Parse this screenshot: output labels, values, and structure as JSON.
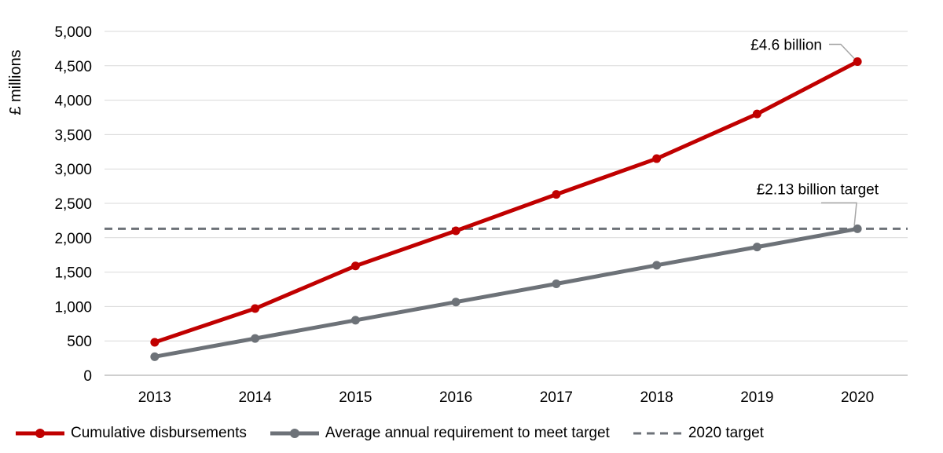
{
  "chart_data": {
    "type": "line",
    "ylabel": "£ millions",
    "xlabel": "",
    "ylim": [
      0,
      5000
    ],
    "yticks": [
      0,
      500,
      1000,
      1500,
      2000,
      2500,
      3000,
      3500,
      4000,
      4500,
      5000
    ],
    "ytick_labels": [
      "0",
      "500",
      "1,000",
      "1,500",
      "2,000",
      "2,500",
      "3,000",
      "3,500",
      "4,000",
      "4,500",
      "5,000"
    ],
    "categories": [
      "2013",
      "2014",
      "2015",
      "2016",
      "2017",
      "2018",
      "2019",
      "2020"
    ],
    "grid": "horizontal",
    "legend_position": "bottom",
    "series": [
      {
        "name": "Cumulative disbursements",
        "color": "#C00000",
        "values": [
          480,
          970,
          1590,
          2100,
          2630,
          3150,
          3800,
          4560
        ]
      },
      {
        "name": "Average annual requirement to meet target",
        "color": "#6D7278",
        "values": [
          270,
          535,
          800,
          1065,
          1330,
          1600,
          1865,
          2130
        ]
      }
    ],
    "reference_line": {
      "name": "2020 target",
      "value": 2130,
      "style": "dashed",
      "color": "#6D7278"
    },
    "annotations": [
      {
        "text": "£4.6 billion",
        "series": 0,
        "category": "2020"
      },
      {
        "text": "£2.13 billion target",
        "series": 1,
        "category": "2020"
      }
    ]
  }
}
